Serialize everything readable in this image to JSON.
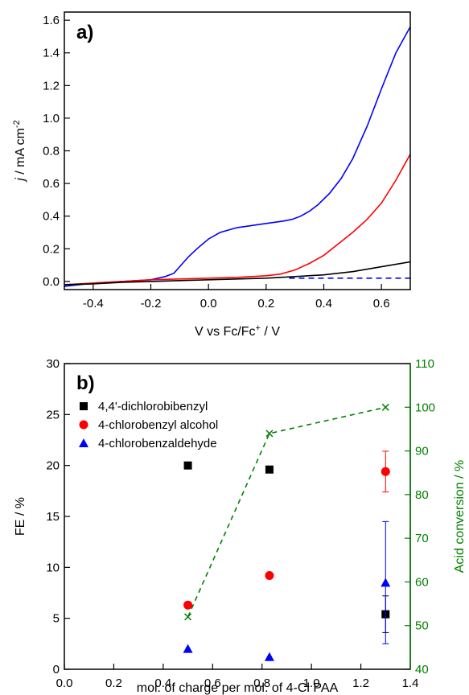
{
  "colors": {
    "black": "#000000",
    "red": "#ff0000",
    "blue": "#0000ff",
    "green": "#008000"
  },
  "chart_data": [
    {
      "panel": "a)",
      "type": "line",
      "xlabel_main": "V vs Fc/Fc",
      "xlabel_sup": "+",
      "xlabel_tail": " / V",
      "ylabel_italic": "j",
      "ylabel_main": " / mA cm",
      "ylabel_sup": "-2",
      "xlim": [
        -0.5,
        0.7
      ],
      "ylim": [
        -0.05,
        1.65
      ],
      "xticks": [
        -0.4,
        -0.2,
        0.0,
        0.2,
        0.4,
        0.6
      ],
      "xtick_labels": [
        "-0.4",
        "-0.2",
        "0.0",
        "0.2",
        "0.4",
        "0.6"
      ],
      "yticks": [
        0.0,
        0.2,
        0.4,
        0.6,
        0.8,
        1.0,
        1.2,
        1.4,
        1.6
      ],
      "ytick_labels": [
        "0.0",
        "0.2",
        "0.4",
        "0.6",
        "0.8",
        "1.0",
        "1.2",
        "1.4",
        "1.6"
      ],
      "series": [
        {
          "color": "#0000ff",
          "dash": false,
          "x": [
            -0.5,
            -0.45,
            -0.4,
            -0.3,
            -0.2,
            -0.15,
            -0.12,
            -0.1,
            -0.07,
            -0.04,
            0.0,
            0.04,
            0.08,
            0.1,
            0.14,
            0.18,
            0.22,
            0.26,
            0.29,
            0.32,
            0.35,
            0.38,
            0.42,
            0.46,
            0.5,
            0.55,
            0.6,
            0.65,
            0.7
          ],
          "y": [
            -0.03,
            -0.02,
            -0.01,
            0.0,
            0.01,
            0.03,
            0.05,
            0.09,
            0.15,
            0.2,
            0.26,
            0.3,
            0.32,
            0.33,
            0.34,
            0.35,
            0.36,
            0.37,
            0.38,
            0.4,
            0.43,
            0.47,
            0.54,
            0.63,
            0.75,
            0.95,
            1.18,
            1.4,
            1.56
          ]
        },
        {
          "color": "#ff0000",
          "dash": false,
          "x": [
            -0.5,
            -0.4,
            -0.3,
            -0.2,
            -0.1,
            0.0,
            0.1,
            0.2,
            0.25,
            0.3,
            0.35,
            0.4,
            0.45,
            0.5,
            0.55,
            0.6,
            0.65,
            0.7
          ],
          "y": [
            -0.02,
            -0.01,
            0.0,
            0.01,
            0.015,
            0.02,
            0.025,
            0.035,
            0.045,
            0.07,
            0.11,
            0.16,
            0.23,
            0.3,
            0.38,
            0.48,
            0.62,
            0.78
          ]
        },
        {
          "color": "#000000",
          "dash": false,
          "x": [
            -0.5,
            -0.4,
            -0.3,
            -0.2,
            -0.1,
            0.0,
            0.1,
            0.2,
            0.3,
            0.4,
            0.5,
            0.6,
            0.7
          ],
          "y": [
            -0.02,
            -0.015,
            -0.005,
            0.0,
            0.005,
            0.01,
            0.015,
            0.02,
            0.03,
            0.04,
            0.06,
            0.09,
            0.12
          ]
        },
        {
          "color": "#0000ff",
          "dash": true,
          "x": [
            0.28,
            0.7
          ],
          "y": [
            0.02,
            0.02
          ]
        }
      ]
    },
    {
      "panel": "b)",
      "type": "scatter",
      "xlabel": "mol. of charge per mol. of 4-Cl PAA",
      "ylabel": "FE / %",
      "ylabel_right": "Acid conversion / %",
      "xlim": [
        0.0,
        1.4
      ],
      "ylim": [
        0,
        30
      ],
      "ylim_right": [
        40,
        110
      ],
      "xticks": [
        0.0,
        0.2,
        0.4,
        0.6,
        0.8,
        1.0,
        1.2,
        1.4
      ],
      "xtick_labels": [
        "0.0",
        "0.2",
        "0.4",
        "0.6",
        "0.8",
        "1.0",
        "1.2",
        "1.4"
      ],
      "yticks": [
        0,
        5,
        10,
        15,
        20,
        25,
        30
      ],
      "ytick_labels": [
        "0",
        "5",
        "10",
        "15",
        "20",
        "25",
        "30"
      ],
      "yticks_right": [
        40,
        50,
        60,
        70,
        80,
        90,
        100,
        110
      ],
      "ytick_labels_right": [
        "40",
        "50",
        "60",
        "70",
        "80",
        "90",
        "100",
        "110"
      ],
      "series": [
        {
          "name": "4,4'-dichlorobibenzyl",
          "marker": "square",
          "color": "#000000",
          "x": [
            0.5,
            0.83,
            1.3
          ],
          "y": [
            20.0,
            19.6,
            5.4
          ],
          "err": [
            0,
            0,
            1.8
          ]
        },
        {
          "name": "4-chlorobenzyl alcohol",
          "marker": "circle",
          "color": "#ff0000",
          "x": [
            0.5,
            0.83,
            1.3
          ],
          "y": [
            6.3,
            9.2,
            19.4
          ],
          "err": [
            0,
            0,
            2.0
          ]
        },
        {
          "name": "4-chlorobenzaldehyde",
          "marker": "triangle",
          "color": "#0000ff",
          "x": [
            0.5,
            0.83,
            1.3
          ],
          "y": [
            2.0,
            1.2,
            8.5
          ],
          "err": [
            0,
            0,
            6.0
          ]
        }
      ],
      "conversion": {
        "color": "#008000",
        "marker": "x",
        "x": [
          0.5,
          0.83,
          1.3
        ],
        "y": [
          52,
          94,
          100
        ]
      }
    }
  ]
}
